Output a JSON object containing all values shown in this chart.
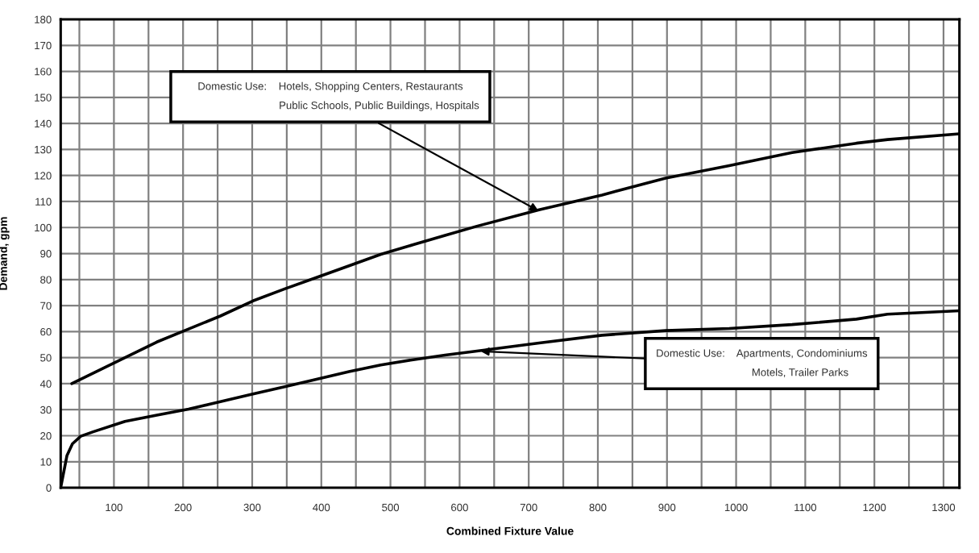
{
  "chart_data": {
    "type": "line",
    "xlabel": "Combined Fixture Value",
    "ylabel": "Demand, gpm",
    "xlim": [
      23,
      1323
    ],
    "ylim": [
      0,
      180
    ],
    "xticks": [
      {
        "value": 50,
        "label": null
      },
      100,
      {
        "value": 150,
        "label": null
      },
      200,
      {
        "value": 250,
        "label": null
      },
      300,
      {
        "value": 350,
        "label": null
      },
      400,
      {
        "value": 450,
        "label": null
      },
      500,
      {
        "value": 550,
        "label": null
      },
      600,
      {
        "value": 650,
        "label": null
      },
      700,
      {
        "value": 750,
        "label": null
      },
      800,
      {
        "value": 850,
        "label": null
      },
      900,
      {
        "value": 950,
        "label": null
      },
      1000,
      {
        "value": 1050,
        "label": null
      },
      1100,
      {
        "value": 1150,
        "label": null
      },
      1200,
      {
        "value": 1250,
        "label": null
      },
      1300
    ],
    "yticks": [
      0,
      10,
      20,
      30,
      40,
      50,
      60,
      70,
      80,
      90,
      100,
      110,
      120,
      130,
      140,
      150,
      160,
      170,
      180
    ],
    "grid": true,
    "marker": "none",
    "line_style": "solid",
    "series": [
      {
        "color": "#000000",
        "x": [
          39,
          116,
          162,
          208,
          254,
          301,
          347,
          393,
          440,
          486,
          533,
          579,
          625,
          715,
          806,
          898,
          990,
          1081,
          1174,
          1219,
          1323
        ],
        "values": [
          40,
          50,
          56,
          61,
          66,
          71.8,
          76.4,
          80.8,
          85.3,
          89.7,
          93.4,
          97,
          100.5,
          106.8,
          112.5,
          119,
          123.8,
          128.8,
          132.4,
          133.8,
          136
        ]
      },
      {
        "color": "#000000",
        "x": [
          23,
          32,
          40,
          52,
          70,
          116,
          162,
          208,
          254,
          301,
          347,
          393,
          440,
          486,
          533,
          579,
          625,
          715,
          806,
          898,
          990,
          1081,
          1174,
          1219,
          1323
        ],
        "values": [
          0,
          12.3,
          16.9,
          19.8,
          21.5,
          25.5,
          27.9,
          30.2,
          33.1,
          36,
          38.8,
          41.7,
          44.6,
          47.2,
          49.2,
          51,
          52.5,
          55.6,
          58.6,
          60.4,
          61.2,
          62.7,
          64.8,
          66.7,
          68
        ]
      }
    ],
    "annotations": [
      {
        "text": "Domestic Use:    Hotels, Shopping Centers, Restaurants\n                                 Public Schools, Public Buildings, Hospitals",
        "x": 717,
        "y": 106
      },
      {
        "text": "Domestic Use:    Apartments, Condominiums\n                          Motels, Trailer Parks",
        "x": 627,
        "y": 52.5
      }
    ]
  }
}
